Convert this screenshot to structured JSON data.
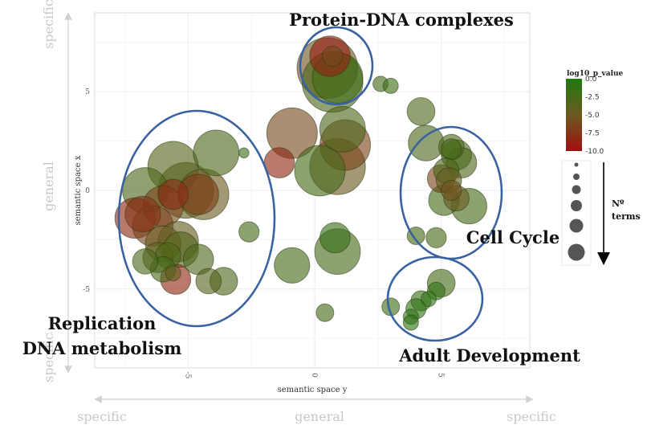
{
  "chart_data": {
    "type": "scatter",
    "xlabel": "semantic space y",
    "ylabel": "semantic space x",
    "xlim": [
      -8.7,
      8.5
    ],
    "ylim": [
      -9.0,
      9.0
    ],
    "x_ticks": [
      {
        "value": -5,
        "label": "-5"
      },
      {
        "value": 0,
        "label": "0"
      },
      {
        "value": 5,
        "label": "5"
      }
    ],
    "y_ticks": [
      {
        "value": 5,
        "label": "5"
      },
      {
        "value": 0,
        "label": "0"
      },
      {
        "value": -5,
        "label": "-5"
      }
    ],
    "grid": true,
    "color_legend": {
      "title": "log10_p_value",
      "ticks": [
        "0.0",
        "-2.5",
        "-5.0",
        "-7.5",
        "-10.0"
      ],
      "range": [
        0.0,
        -10.0
      ],
      "colors": {
        "high": "#1f7a10",
        "mid": "#6b5a20",
        "low": "#a00f0f"
      }
    },
    "size_legend": {
      "label_line1": "Nº",
      "label_line2": "terms",
      "levels": 6
    },
    "points": [
      {
        "x": 0.5,
        "y": 6.2,
        "r": 1.2,
        "p": -5.5
      },
      {
        "x": 0.7,
        "y": 5.5,
        "r": 1.2,
        "p": -3.0
      },
      {
        "x": 0.9,
        "y": 5.7,
        "r": 1.0,
        "p": -2.0
      },
      {
        "x": 0.6,
        "y": 6.8,
        "r": 0.8,
        "p": -9.0
      },
      {
        "x": 0.7,
        "y": 6.8,
        "r": 0.4,
        "p": -6.0
      },
      {
        "x": 2.6,
        "y": 5.4,
        "r": 0.3,
        "p": -2.5
      },
      {
        "x": 3.0,
        "y": 5.3,
        "r": 0.3,
        "p": -2.0
      },
      {
        "x": 4.2,
        "y": 4.0,
        "r": 0.55,
        "p": -3.0
      },
      {
        "x": 1.1,
        "y": 3.1,
        "r": 0.9,
        "p": -3.0
      },
      {
        "x": -0.9,
        "y": 2.9,
        "r": 1.0,
        "p": -6.0
      },
      {
        "x": 1.2,
        "y": 2.3,
        "r": 1.0,
        "p": -6.5
      },
      {
        "x": 0.9,
        "y": 1.2,
        "r": 1.1,
        "p": -5.0
      },
      {
        "x": 0.2,
        "y": 1.0,
        "r": 1.0,
        "p": -2.5
      },
      {
        "x": -1.4,
        "y": 1.4,
        "r": 0.6,
        "p": -8.5
      },
      {
        "x": -2.8,
        "y": 1.9,
        "r": 0.2,
        "p": -2.0
      },
      {
        "x": -3.9,
        "y": 1.9,
        "r": 0.9,
        "p": -3.0
      },
      {
        "x": -5.6,
        "y": 1.2,
        "r": 1.0,
        "p": -3.5
      },
      {
        "x": -6.7,
        "y": 0.0,
        "r": 0.9,
        "p": -3.0
      },
      {
        "x": -5.1,
        "y": 0.0,
        "r": 1.1,
        "p": -4.5
      },
      {
        "x": -4.4,
        "y": -0.2,
        "r": 1.0,
        "p": -5.0
      },
      {
        "x": -4.6,
        "y": -0.2,
        "r": 0.8,
        "p": -7.0
      },
      {
        "x": -5.6,
        "y": -0.2,
        "r": 0.6,
        "p": -8.0
      },
      {
        "x": -6.0,
        "y": -0.8,
        "r": 0.8,
        "p": -6.5
      },
      {
        "x": -6.8,
        "y": -1.2,
        "r": 0.7,
        "p": -7.5
      },
      {
        "x": -7.1,
        "y": -1.4,
        "r": 0.8,
        "p": -8.5
      },
      {
        "x": -6.4,
        "y": -1.8,
        "r": 0.8,
        "p": -6.5
      },
      {
        "x": -5.4,
        "y": -2.6,
        "r": 0.8,
        "p": -4.5
      },
      {
        "x": -6.0,
        "y": -2.7,
        "r": 0.7,
        "p": -5.0
      },
      {
        "x": -5.3,
        "y": -3.0,
        "r": 0.7,
        "p": -3.5
      },
      {
        "x": -6.2,
        "y": -3.4,
        "r": 0.6,
        "p": -4.0
      },
      {
        "x": -5.8,
        "y": -3.3,
        "r": 0.5,
        "p": -3.0
      },
      {
        "x": -6.0,
        "y": -4.0,
        "r": 0.5,
        "p": -2.5
      },
      {
        "x": -5.6,
        "y": -4.2,
        "r": 0.3,
        "p": -4.5
      },
      {
        "x": -4.6,
        "y": -3.5,
        "r": 0.6,
        "p": -3.0
      },
      {
        "x": -5.5,
        "y": -4.5,
        "r": 0.6,
        "p": -8.5
      },
      {
        "x": -3.6,
        "y": -4.6,
        "r": 0.55,
        "p": -3.0
      },
      {
        "x": -4.2,
        "y": -4.6,
        "r": 0.5,
        "p": -3.5
      },
      {
        "x": -6.7,
        "y": -3.6,
        "r": 0.5,
        "p": -3.0
      },
      {
        "x": -2.6,
        "y": -2.1,
        "r": 0.4,
        "p": -2.5
      },
      {
        "x": 0.8,
        "y": -2.4,
        "r": 0.6,
        "p": -1.5
      },
      {
        "x": 0.9,
        "y": -3.1,
        "r": 0.9,
        "p": -2.5
      },
      {
        "x": -0.9,
        "y": -3.8,
        "r": 0.7,
        "p": -2.5
      },
      {
        "x": 0.4,
        "y": -6.2,
        "r": 0.35,
        "p": -2.5
      },
      {
        "x": 4.4,
        "y": 2.4,
        "r": 0.7,
        "p": -3.0
      },
      {
        "x": 5.4,
        "y": 2.2,
        "r": 0.5,
        "p": -3.0
      },
      {
        "x": 5.6,
        "y": 1.8,
        "r": 0.6,
        "p": -3.0
      },
      {
        "x": 5.2,
        "y": 1.0,
        "r": 0.5,
        "p": -3.0
      },
      {
        "x": 5.8,
        "y": 1.4,
        "r": 0.6,
        "p": -3.0
      },
      {
        "x": 5.0,
        "y": 0.6,
        "r": 0.55,
        "p": -6.5
      },
      {
        "x": 5.3,
        "y": 0.5,
        "r": 0.5,
        "p": -4.5
      },
      {
        "x": 5.4,
        "y": 0.0,
        "r": 0.4,
        "p": -5.5
      },
      {
        "x": 5.1,
        "y": -0.5,
        "r": 0.6,
        "p": -2.5
      },
      {
        "x": 5.6,
        "y": -0.4,
        "r": 0.5,
        "p": -5.0
      },
      {
        "x": 6.1,
        "y": -0.8,
        "r": 0.7,
        "p": -2.5
      },
      {
        "x": 5.4,
        "y": 2.1,
        "r": 0.4,
        "p": -2.5
      },
      {
        "x": 4.0,
        "y": -2.3,
        "r": 0.35,
        "p": -2.5
      },
      {
        "x": 4.8,
        "y": -2.4,
        "r": 0.4,
        "p": -2.5
      },
      {
        "x": 5.0,
        "y": -4.7,
        "r": 0.55,
        "p": -2.5
      },
      {
        "x": 4.8,
        "y": -5.1,
        "r": 0.35,
        "p": -1.0
      },
      {
        "x": 4.5,
        "y": -5.5,
        "r": 0.3,
        "p": -1.0
      },
      {
        "x": 4.2,
        "y": -5.6,
        "r": 0.4,
        "p": -1.5
      },
      {
        "x": 4.0,
        "y": -6.0,
        "r": 0.4,
        "p": -1.0
      },
      {
        "x": 3.0,
        "y": -5.9,
        "r": 0.35,
        "p": -2.0
      },
      {
        "x": 3.8,
        "y": -6.4,
        "r": 0.3,
        "p": -1.0
      },
      {
        "x": 3.8,
        "y": -6.7,
        "r": 0.3,
        "p": -1.0
      }
    ]
  },
  "annotations": {
    "protein_dna": "Protein-DNA complexes",
    "cell_cycle": "Cell Cycle",
    "replication_line1": "Replication",
    "replication_line2": "DNA metabolism",
    "adult_development": "Adult Development"
  },
  "semantic_axes": {
    "left_top": "specific",
    "left_mid": "general",
    "left_bottom": "specific",
    "bottom_left": "specific",
    "bottom_mid": "general",
    "bottom_right": "specific"
  }
}
